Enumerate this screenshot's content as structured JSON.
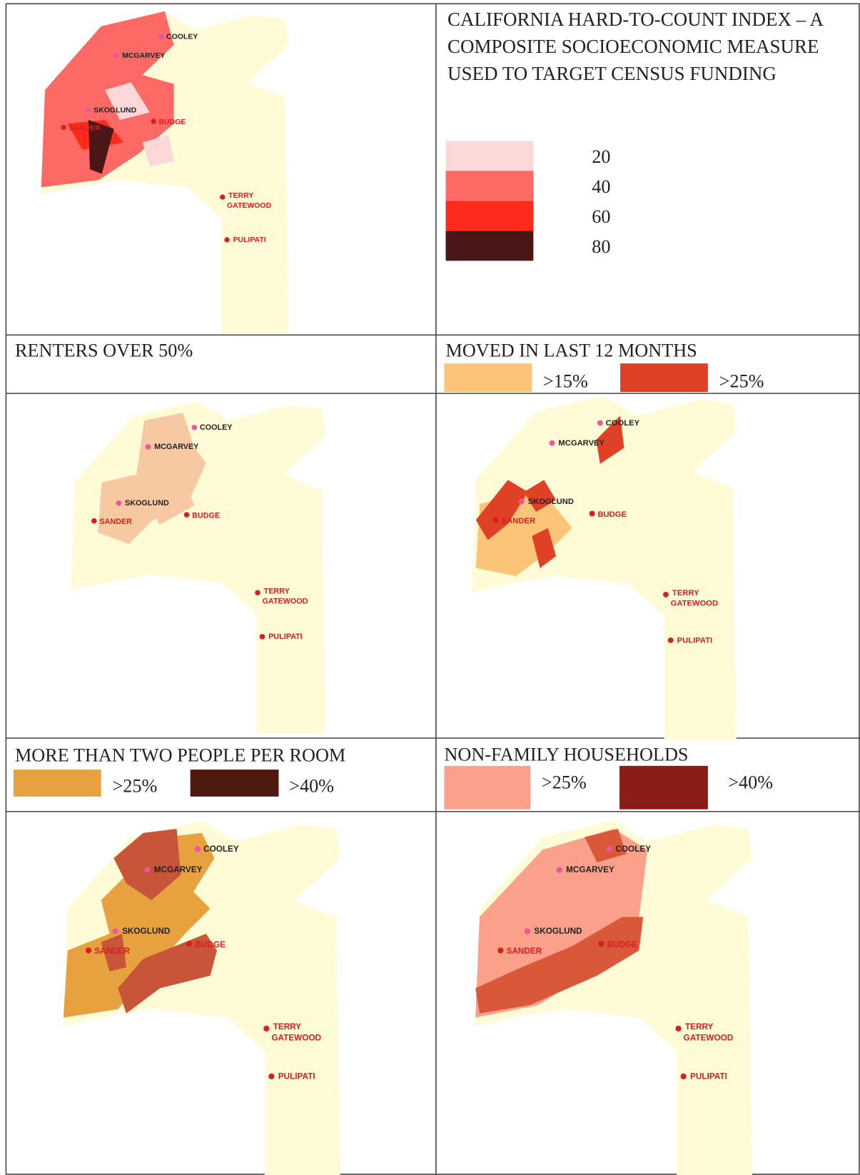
{
  "main_title": "CALIFORNIA HARD-TO-COUNT INDEX – A COMPOSITE SOCIOECONOMIC MEASURE USED TO TARGET CENSUS FUNDING",
  "index_legend": [
    {
      "label": "20",
      "color": "#fdd8d8"
    },
    {
      "label": "40",
      "color": "#fd6a66"
    },
    {
      "label": "60",
      "color": "#fe2a1c"
    },
    {
      "label": "80",
      "color": "#4b1616"
    }
  ],
  "panels": [
    {
      "title": "RENTERS OVER 50%"
    },
    {
      "title": "MOVED IN LAST 12 MONTHS",
      "legend": [
        {
          "label": ">15%",
          "color": "#fbc478"
        },
        {
          "label": ">25%",
          "color": "#df4127"
        }
      ]
    },
    {
      "title": "MORE THAN TWO PEOPLE PER ROOM",
      "legend": [
        {
          "label": ">25%",
          "color": "#e7a23f"
        },
        {
          "label": ">40%",
          "color": "#4e1a0f"
        }
      ]
    },
    {
      "title": "NON-FAMILY HOUSEHOLDS",
      "legend": [
        {
          "label": ">25%",
          "color": "#fba08a"
        },
        {
          "label": ">40%",
          "color": "#8a1e16"
        }
      ]
    }
  ],
  "places": [
    "COOLEY",
    "MCGARVEY",
    "SKOGLUND",
    "SANDER",
    "BUDGE",
    "TERRY",
    "GATEWOOD",
    "PULIPATI"
  ]
}
